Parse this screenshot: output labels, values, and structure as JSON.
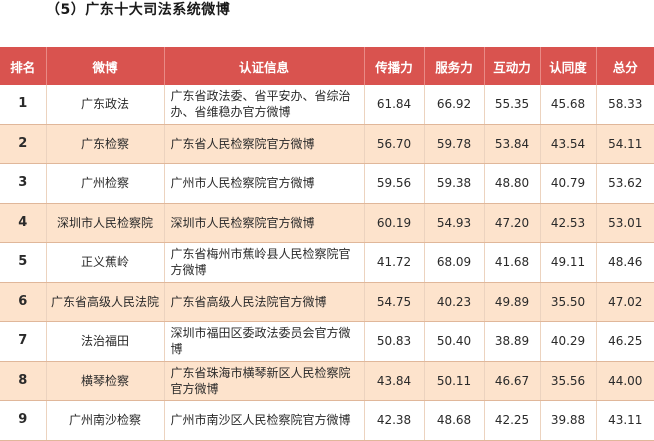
{
  "heading": "（5）广东十大司法系统微博",
  "columns": {
    "rank": "排名",
    "weibo": "微博",
    "cert": "认证信息",
    "spread": "传播力",
    "service": "服务力",
    "interact": "互动力",
    "identity": "认同度",
    "total": "总分"
  },
  "rows": [
    {
      "rank": "1",
      "weibo": "广东政法",
      "cert": "广东省政法委、省平安办、省综治办、省维稳办官方微博",
      "spread": "61.84",
      "service": "66.92",
      "interact": "55.35",
      "identity": "45.68",
      "total": "58.33"
    },
    {
      "rank": "2",
      "weibo": "广东检察",
      "cert": "广东省人民检察院官方微博",
      "spread": "56.70",
      "service": "59.78",
      "interact": "53.84",
      "identity": "43.54",
      "total": "54.11"
    },
    {
      "rank": "3",
      "weibo": "广州检察",
      "cert": "广州市人民检察院官方微博",
      "spread": "59.56",
      "service": "59.38",
      "interact": "48.80",
      "identity": "40.79",
      "total": "53.62"
    },
    {
      "rank": "4",
      "weibo": "深圳市人民检察院",
      "cert": "深圳市人民检察院官方微博",
      "spread": "60.19",
      "service": "54.93",
      "interact": "47.20",
      "identity": "42.53",
      "total": "53.01"
    },
    {
      "rank": "5",
      "weibo": "正义蕉岭",
      "cert": "广东省梅州市蕉岭县人民检察院官方微博",
      "spread": "41.72",
      "service": "68.09",
      "interact": "41.68",
      "identity": "49.11",
      "total": "48.46"
    },
    {
      "rank": "6",
      "weibo": "广东省高级人民法院",
      "cert": "广东省高级人民法院官方微博",
      "spread": "54.75",
      "service": "40.23",
      "interact": "49.89",
      "identity": "35.50",
      "total": "47.02"
    },
    {
      "rank": "7",
      "weibo": "法治福田",
      "cert": "深圳市福田区委政法委员会官方微博",
      "spread": "50.83",
      "service": "50.40",
      "interact": "38.89",
      "identity": "40.29",
      "total": "46.25"
    },
    {
      "rank": "8",
      "weibo": "横琴检察",
      "cert": "广东省珠海市横琴新区人民检察院官方微博",
      "spread": "43.84",
      "service": "50.11",
      "interact": "46.67",
      "identity": "35.56",
      "total": "44.00"
    },
    {
      "rank": "9",
      "weibo": "广州南沙检察",
      "cert": "广州市南沙区人民检察院官方微博",
      "spread": "42.38",
      "service": "48.68",
      "interact": "42.25",
      "identity": "39.88",
      "total": "43.11"
    }
  ]
}
